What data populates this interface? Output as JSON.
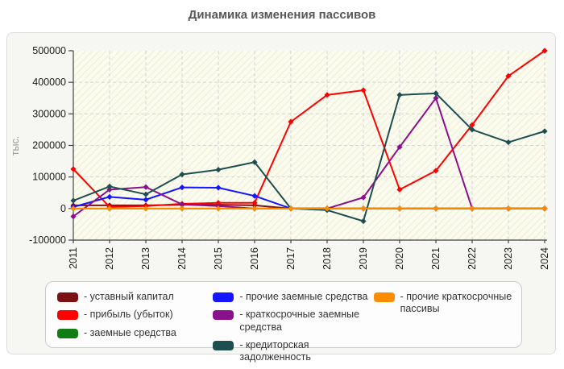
{
  "page": {
    "title": "Динамика изменения пассивов"
  },
  "theme": {
    "page_bg": "#ffffff",
    "panel_bg": "#f6f6f3",
    "panel_border": "#dcdcdc",
    "plot_bg": "#fbfbee",
    "plot_hatch": "#eeeeda",
    "grid_color": "#d4d4d4",
    "axis_color": "#444444",
    "tick_label_color": "#1a1a1a",
    "title_color": "#58585a",
    "ylabel_color": "#999999",
    "legend_bg": "#fdfdfd",
    "legend_border": "#c9c9c9",
    "legend_text": "#333333"
  },
  "legend": {
    "prefix": "- ",
    "columns": [
      [
        0,
        1,
        2
      ],
      [
        3,
        4,
        5
      ],
      [
        6
      ]
    ]
  },
  "chart_data": {
    "type": "line",
    "title": "Динамика изменения пассивов",
    "ylabel": "тыс.",
    "xlabel": "",
    "x": [
      2011,
      2012,
      2013,
      2014,
      2015,
      2016,
      2017,
      2018,
      2019,
      2020,
      2021,
      2022,
      2023,
      2024
    ],
    "ylim": [
      -100000,
      500000
    ],
    "y_ticks": [
      500000,
      400000,
      300000,
      200000,
      100000,
      0,
      -100000
    ],
    "grid": true,
    "legend_position": "bottom",
    "marker": "diamond",
    "series": [
      {
        "name": "уставный капитал",
        "color": "#7b1113",
        "values": [
          10000,
          10000,
          10000,
          12000,
          12000,
          10000,
          0,
          0,
          0,
          0,
          0,
          0,
          0,
          0
        ]
      },
      {
        "name": "прибыль (убыток)",
        "color": "#fe0000",
        "values": [
          125000,
          5000,
          8000,
          15000,
          18000,
          18000,
          275000,
          360000,
          375000,
          60000,
          120000,
          265000,
          420000,
          500000
        ]
      },
      {
        "name": "заемные средства",
        "color": "#0f7d13",
        "values": [
          0,
          0,
          0,
          0,
          0,
          0,
          0,
          0,
          0,
          0,
          0,
          0,
          0,
          0
        ]
      },
      {
        "name": "прочие заемные средства",
        "color": "#1515ff",
        "values": [
          5000,
          37000,
          28000,
          67000,
          66000,
          40000,
          0,
          0,
          0,
          0,
          0,
          0,
          0,
          0
        ]
      },
      {
        "name": "краткосрочные заемные средства",
        "color": "#8b108b",
        "values": [
          -25000,
          60000,
          68000,
          13000,
          8000,
          0,
          0,
          0,
          35000,
          195000,
          350000,
          0,
          0,
          0
        ]
      },
      {
        "name": "кредиторская задолженность",
        "color": "#1d4e50",
        "values": [
          25000,
          70000,
          45000,
          108000,
          123000,
          147000,
          0,
          -5000,
          -40000,
          360000,
          365000,
          250000,
          210000,
          245000
        ]
      },
      {
        "name": "прочие краткосрочные пассивы",
        "color": "#ff8c00",
        "values": [
          0,
          0,
          0,
          0,
          0,
          0,
          0,
          0,
          0,
          0,
          0,
          0,
          0,
          0
        ]
      }
    ]
  }
}
